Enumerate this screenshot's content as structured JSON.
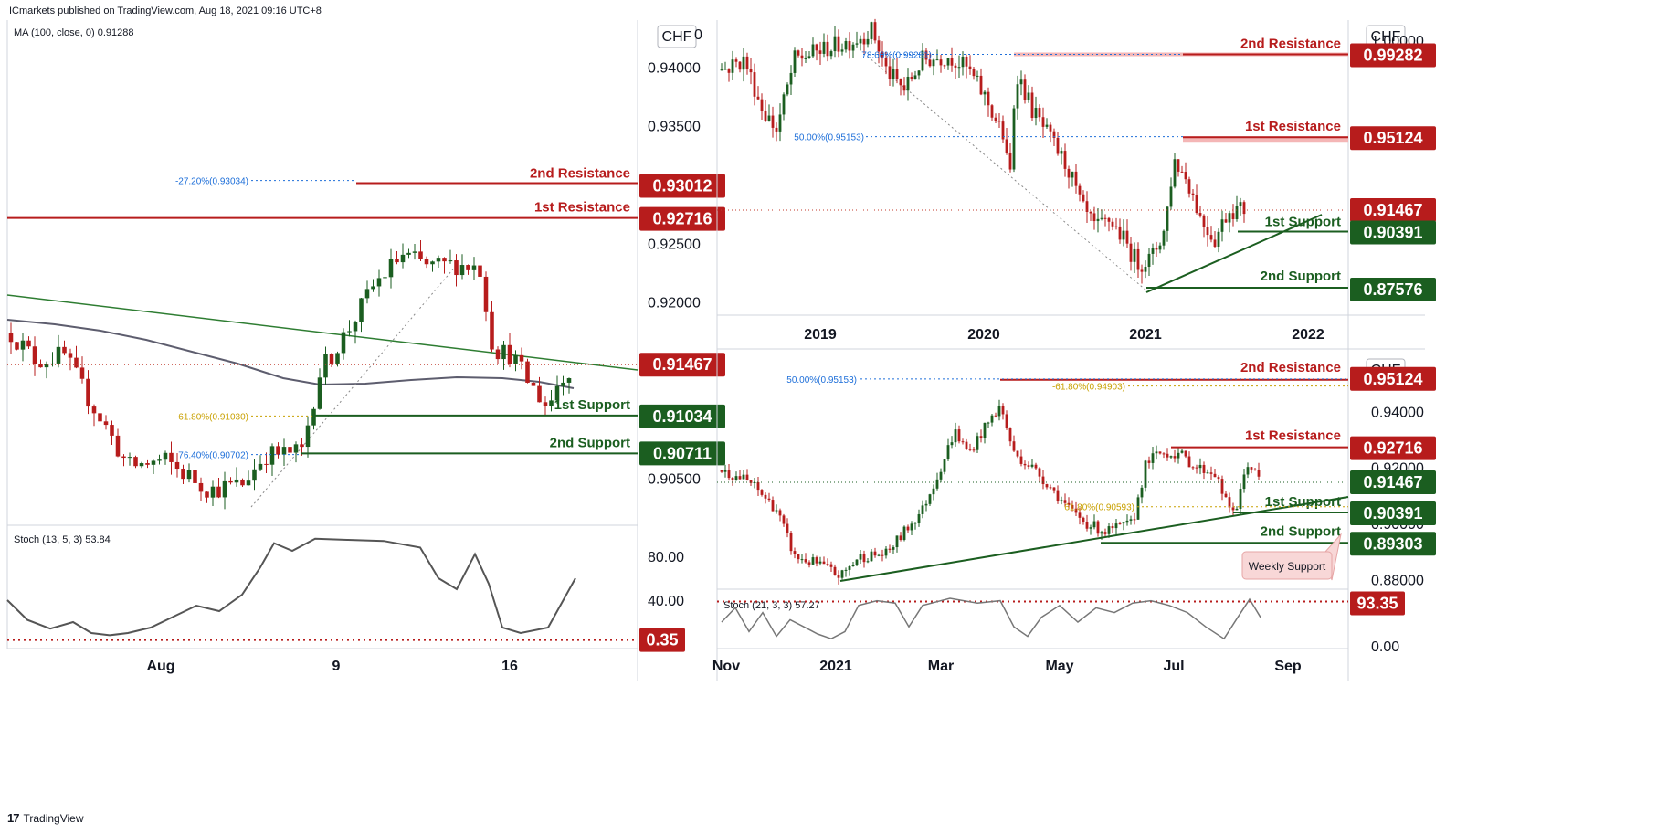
{
  "header": {
    "text": "ICmarkets published on TradingView.com, Aug 18, 2021 09:16 UTC+8"
  },
  "footer": {
    "logo": "17",
    "brand": "TradingView"
  },
  "colors": {
    "bull": "#1b5e20",
    "bear": "#b71c1c",
    "resistance": "#b71c1c",
    "support": "#1b5e20",
    "fib_blue": "#1e6fd9",
    "fib_orange": "#c8a000",
    "ma": "#5d5d6e",
    "stoch": "#555555"
  },
  "chart_data": [
    {
      "id": "left-panel",
      "type": "candlestick",
      "currency_badge": "CHF",
      "indicator_label": "MA (100, close, 0)  0.91288",
      "x_ticks": [
        "Aug",
        "9",
        "16"
      ],
      "y_ticks": [
        "0.94000",
        "0.93500",
        "0.92500",
        "0.92000",
        "0.90500"
      ],
      "ylim": [
        0.901,
        0.944
      ],
      "levels": [
        {
          "label": "2nd Resistance",
          "value": 0.93012,
          "kind": "resistance"
        },
        {
          "label": "1st Resistance",
          "value": 0.92716,
          "kind": "resistance"
        },
        {
          "label": "1st Support",
          "value": 0.91034,
          "kind": "support"
        },
        {
          "label": "2nd Support",
          "value": 0.90711,
          "kind": "support"
        }
      ],
      "current_price": {
        "value": 0.91467,
        "label": "0.91467"
      },
      "fibs": [
        {
          "label": "-27.20%(0.93034)",
          "value": 0.93034,
          "color": "blue"
        },
        {
          "label": "61.80%(0.91030)",
          "value": 0.9103,
          "color": "orange"
        },
        {
          "label": "76.40%(0.90702)",
          "value": 0.90702,
          "color": "blue"
        }
      ],
      "oscillator": {
        "label": "Stoch (13, 5, 3)  53.84",
        "y_ticks": [
          "80.00",
          "40.00"
        ],
        "level_label": "0.35",
        "ylim": [
          0,
          100
        ]
      }
    },
    {
      "id": "top-right-panel",
      "type": "candlestick",
      "currency_badge": "CHF",
      "x_ticks": [
        "2019",
        "2020",
        "2021",
        "2022"
      ],
      "y_ticks": [
        "1.00000"
      ],
      "ylim": [
        0.862,
        1.01
      ],
      "levels": [
        {
          "label": "2nd Resistance",
          "value": 0.99282,
          "kind": "resistance"
        },
        {
          "label": "1st Resistance",
          "value": 0.95124,
          "kind": "resistance"
        },
        {
          "label": "1st Support",
          "value": 0.90391,
          "kind": "support"
        },
        {
          "label": "2nd Support",
          "value": 0.87576,
          "kind": "support"
        }
      ],
      "current_price": {
        "value": 0.91467,
        "label": "0.91467"
      },
      "fibs": [
        {
          "label": "78.60%(0.99281)",
          "value": 0.99281,
          "color": "blue"
        },
        {
          "label": "50.00%(0.95153)",
          "value": 0.95153,
          "color": "blue"
        }
      ]
    },
    {
      "id": "bottom-right-panel",
      "type": "candlestick",
      "currency_badge": "CHF",
      "x_ticks": [
        "Nov",
        "2021",
        "Mar",
        "May",
        "Jul",
        "Sep"
      ],
      "y_ticks": [
        "0.94000",
        "0.92000",
        "0.90000",
        "0.88000"
      ],
      "ylim": [
        0.8765,
        0.959
      ],
      "levels": [
        {
          "label": "2nd Resistance",
          "value": 0.95124,
          "kind": "resistance"
        },
        {
          "label": "1st Resistance",
          "value": 0.92716,
          "kind": "resistance"
        },
        {
          "label": "1st Support",
          "value": 0.90391,
          "kind": "support"
        },
        {
          "label": "2nd Support",
          "value": 0.89303,
          "kind": "support"
        }
      ],
      "current_price": {
        "value": 0.91467,
        "label": "0.91467"
      },
      "fibs": [
        {
          "label": "50.00%(0.95153)",
          "value": 0.95153,
          "color": "blue"
        },
        {
          "label": "-61.80%(0.94903)",
          "value": 0.94903,
          "color": "orange"
        },
        {
          "label": "61.80%(0.90593)",
          "value": 0.90593,
          "color": "orange"
        }
      ],
      "annotation": "Weekly Support",
      "oscillator": {
        "label": "Stoch (21, 3, 3)  57.27",
        "y_ticks": [
          "0.00"
        ],
        "level_label": "93.35",
        "ylim": [
          0,
          100
        ]
      }
    }
  ]
}
